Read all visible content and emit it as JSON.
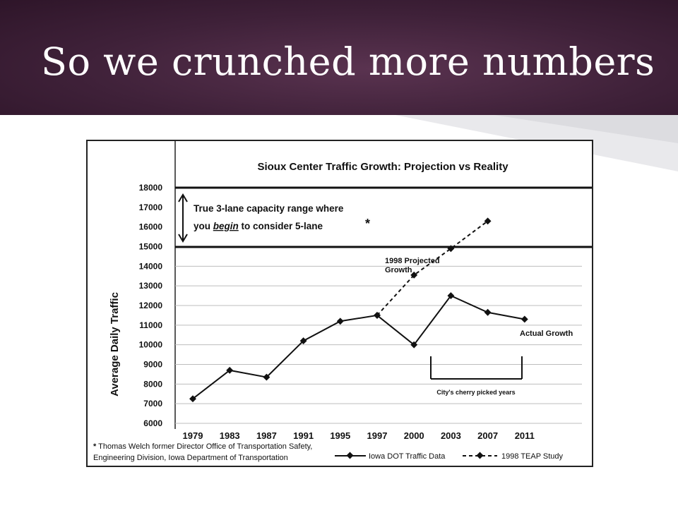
{
  "slide": {
    "title": "So we crunched more numbers",
    "accent_color": "#3f2139"
  },
  "chart_data": {
    "type": "line",
    "title": "Sioux Center Traffic Growth: Projection vs Reality",
    "ylabel": "Average Daily Traffic",
    "xlabel": "",
    "ylim": [
      6000,
      18000
    ],
    "yticks": [
      6000,
      7000,
      8000,
      9000,
      10000,
      11000,
      12000,
      13000,
      14000,
      15000,
      16000,
      17000,
      18000
    ],
    "categories": [
      "1979",
      "1983",
      "1987",
      "1991",
      "1995",
      "1997",
      "2000",
      "2003",
      "2007",
      "2011"
    ],
    "series": [
      {
        "name": "Iowa DOT Traffic Data",
        "style": "solid",
        "values": [
          7250,
          8700,
          8350,
          10200,
          11200,
          11500,
          10000,
          12500,
          11650,
          11300
        ]
      },
      {
        "name": "1998 TEAP Study",
        "style": "dashed",
        "values": [
          null,
          null,
          null,
          null,
          null,
          11500,
          13550,
          14900,
          16300,
          null
        ]
      }
    ],
    "band": {
      "from": 15000,
      "to": 18000
    },
    "annotations": {
      "capacity_line1": "True 3-lane capacity range where",
      "capacity_line2_pre": "you ",
      "capacity_line2_em": "begin",
      "capacity_line2_post": " to consider 5-lane",
      "capacity_star": "*",
      "projected_line1": "1998 Projected",
      "projected_line2": "Growth",
      "actual": "Actual Growth",
      "cherry": "City's cherry picked years"
    },
    "footnote": {
      "star": "*",
      "line1": "Thomas Welch former Director Office of Transportation Safety,",
      "line2": "Engineering Division, Iowa Department of Transportation"
    },
    "grid": true,
    "legend_position": "bottom-right"
  }
}
